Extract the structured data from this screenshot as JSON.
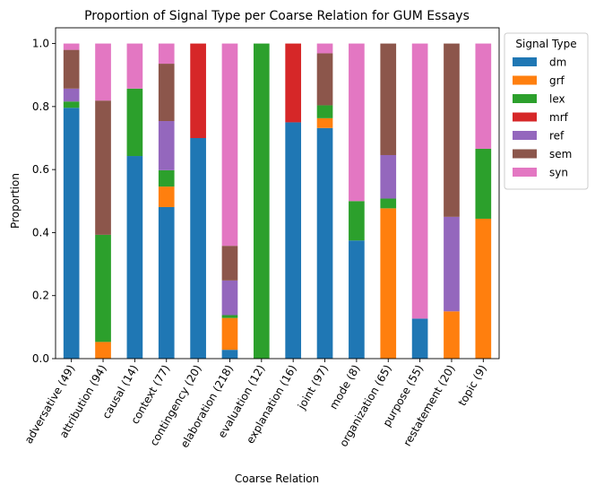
{
  "chart_data": {
    "type": "bar",
    "stacked": true,
    "title": "Proportion of Signal Type per Coarse Relation for GUM Essays",
    "xlabel": "Coarse Relation",
    "ylabel": "Proportion",
    "ylim": [
      0,
      1.05
    ],
    "yticks": [
      "0.0",
      "0.2",
      "0.4",
      "0.6",
      "0.8",
      "1.0"
    ],
    "grid": false,
    "legend": {
      "title": "Signal Type",
      "placement": "outside-right-top"
    },
    "categories": [
      "adversative (49)",
      "attribution (94)",
      "causal (14)",
      "context (77)",
      "contingency (20)",
      "elaboration (218)",
      "evaluation (12)",
      "explanation (16)",
      "joint (97)",
      "mode (8)",
      "organization (65)",
      "purpose (55)",
      "restatement (20)",
      "topic (9)"
    ],
    "series": [
      {
        "name": "dm",
        "color": "#1f77b4",
        "values": [
          0.796,
          0.0,
          0.643,
          0.481,
          0.7,
          0.028,
          0.0,
          0.75,
          0.732,
          0.375,
          0.0,
          0.127,
          0.0,
          0.0
        ]
      },
      {
        "name": "grf",
        "color": "#ff7f0e",
        "values": [
          0.0,
          0.053,
          0.0,
          0.065,
          0.0,
          0.101,
          0.0,
          0.0,
          0.031,
          0.0,
          0.477,
          0.0,
          0.15,
          0.444
        ]
      },
      {
        "name": "lex",
        "color": "#2ca02c",
        "values": [
          0.02,
          0.34,
          0.214,
          0.052,
          0.0,
          0.009,
          1.0,
          0.0,
          0.041,
          0.125,
          0.031,
          0.0,
          0.0,
          0.222
        ]
      },
      {
        "name": "mrf",
        "color": "#d62728",
        "values": [
          0.0,
          0.0,
          0.0,
          0.0,
          0.3,
          0.0,
          0.0,
          0.25,
          0.0,
          0.0,
          0.0,
          0.0,
          0.0,
          0.0
        ]
      },
      {
        "name": "ref",
        "color": "#9467bd",
        "values": [
          0.041,
          0.0,
          0.0,
          0.156,
          0.0,
          0.11,
          0.0,
          0.0,
          0.0,
          0.0,
          0.138,
          0.0,
          0.3,
          0.0
        ]
      },
      {
        "name": "sem",
        "color": "#8c564b",
        "values": [
          0.123,
          0.426,
          0.0,
          0.182,
          0.0,
          0.11,
          0.0,
          0.0,
          0.165,
          0.0,
          0.354,
          0.0,
          0.55,
          0.0
        ]
      },
      {
        "name": "syn",
        "color": "#e377c2",
        "values": [
          0.02,
          0.181,
          0.143,
          0.064,
          0.0,
          0.642,
          0.0,
          0.0,
          0.031,
          0.5,
          0.0,
          0.873,
          0.0,
          0.334
        ]
      }
    ]
  }
}
